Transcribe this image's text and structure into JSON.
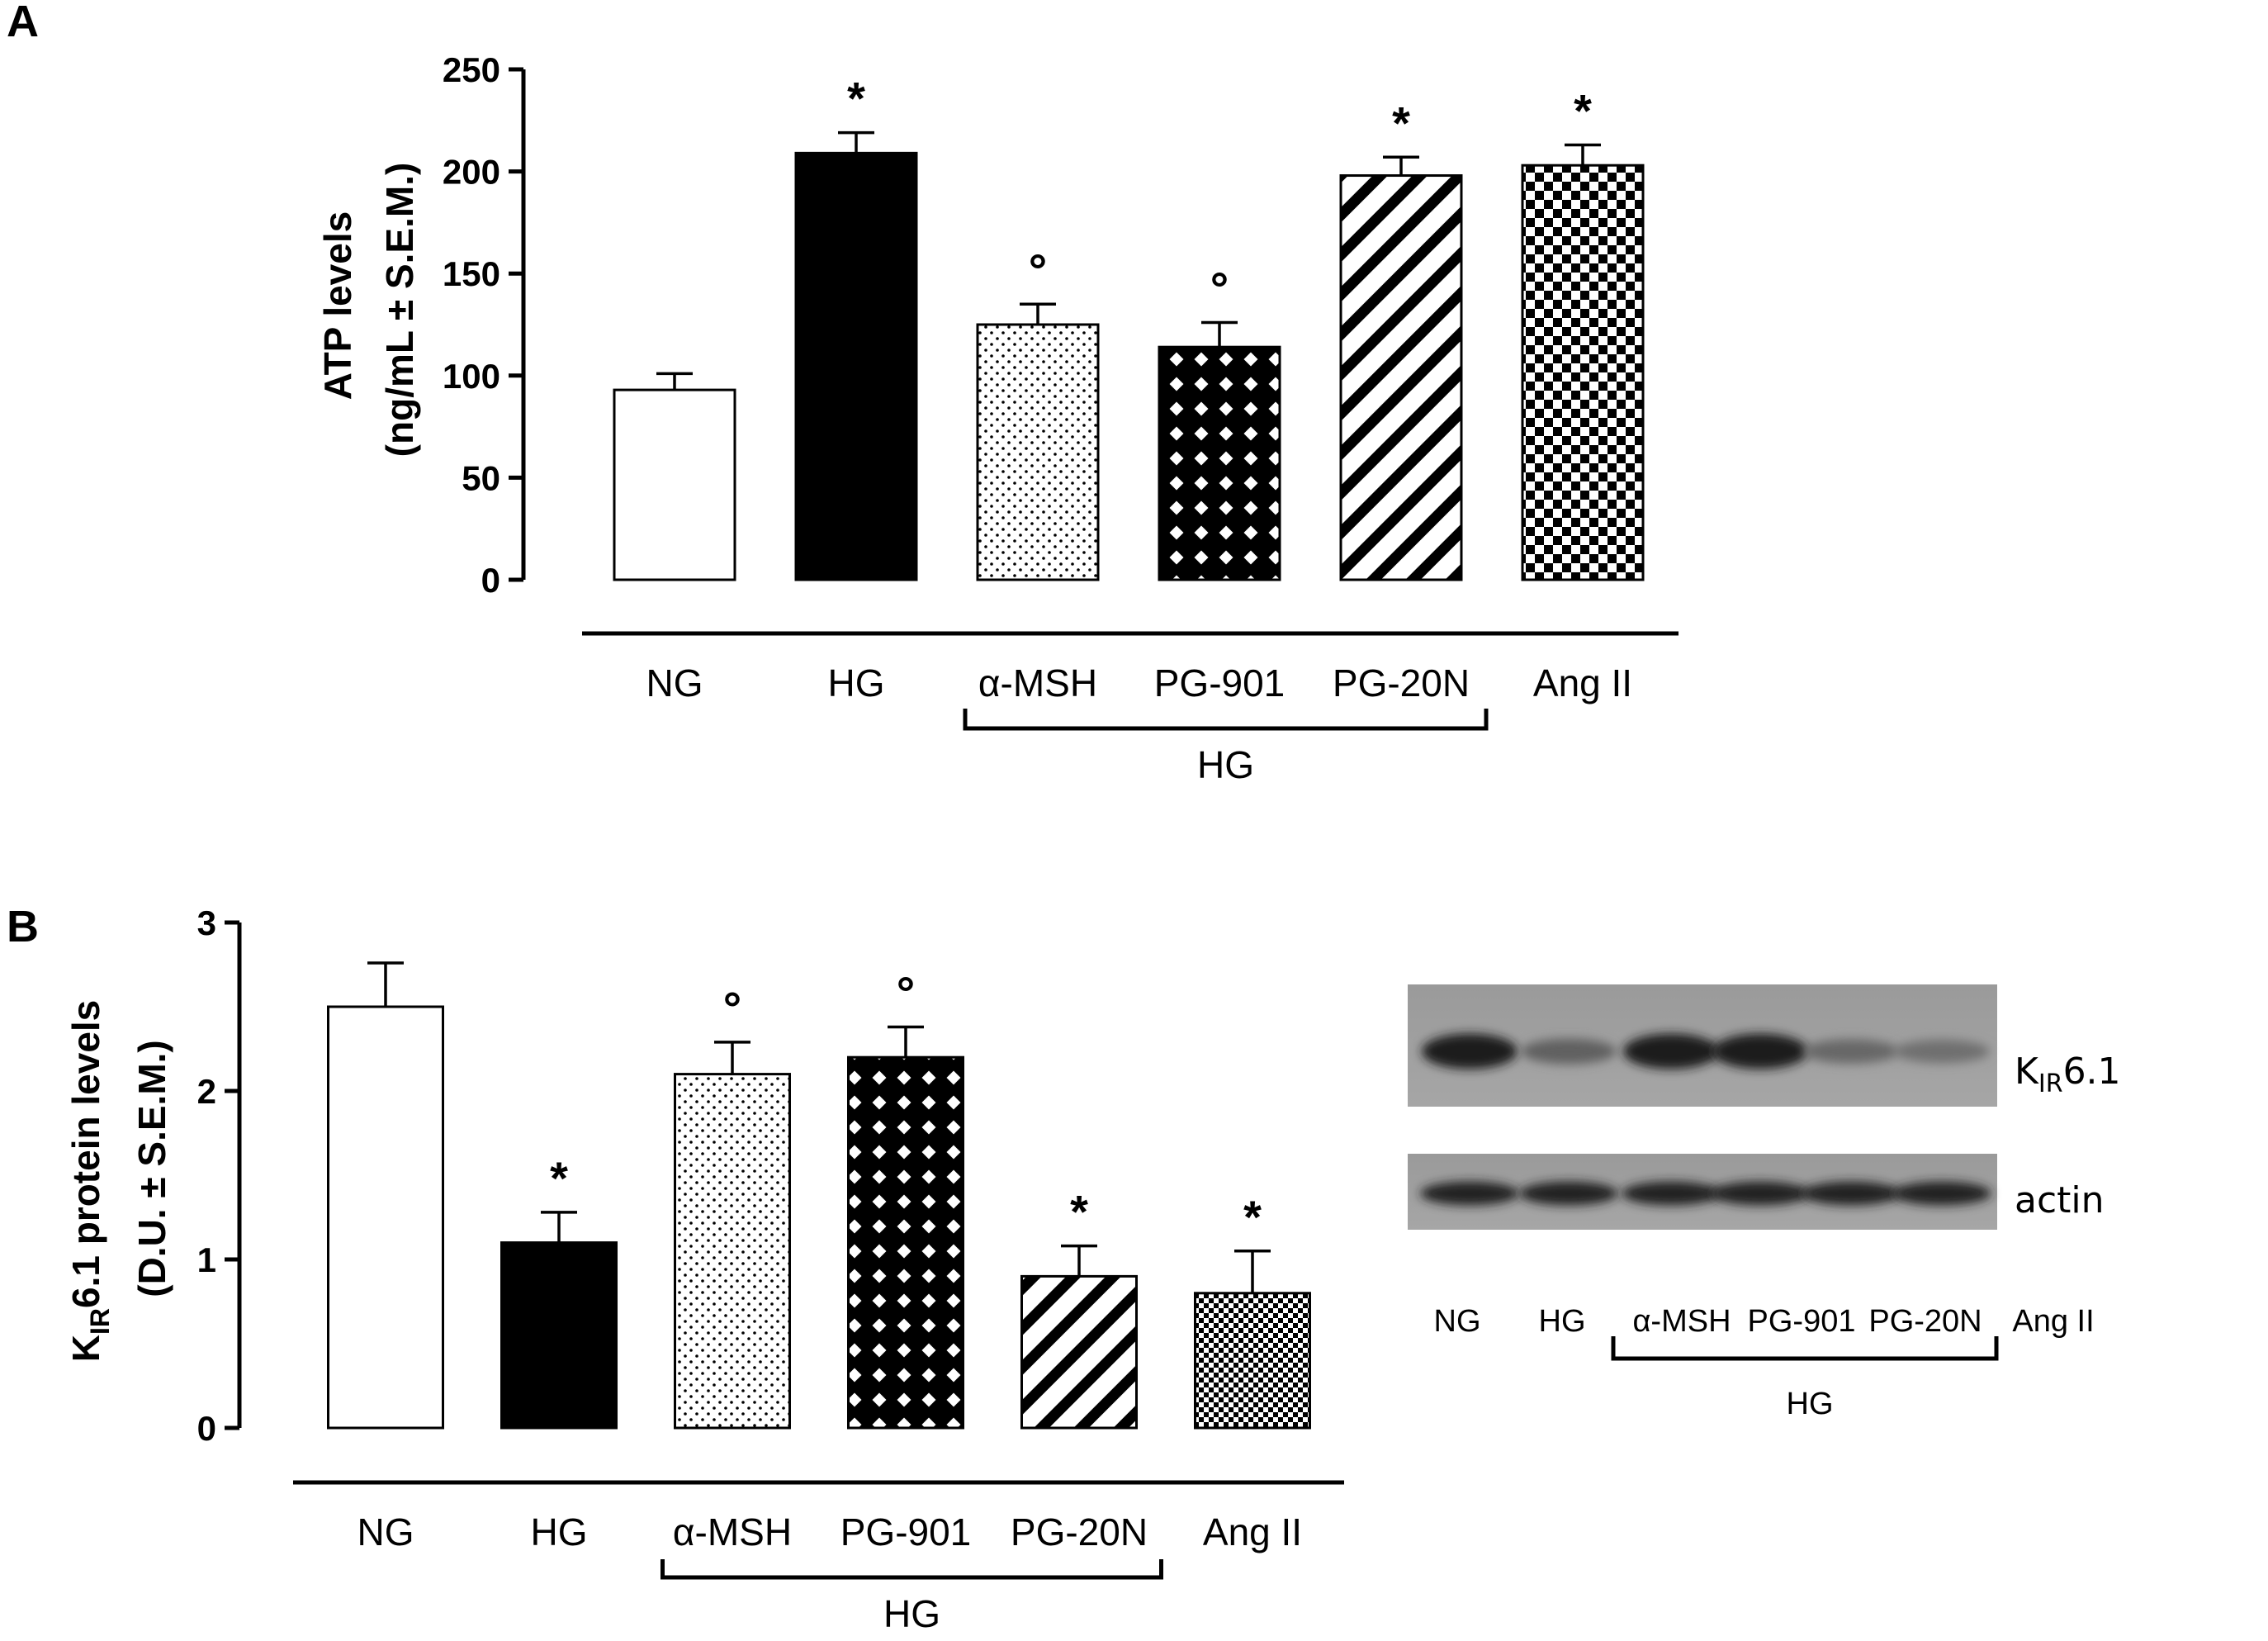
{
  "panels": {
    "a": {
      "letter": "A"
    },
    "b": {
      "letter": "B"
    }
  },
  "chart_data": [
    {
      "panel": "A",
      "type": "bar",
      "categories": [
        "NG",
        "HG",
        "α-MSH",
        "PG-901",
        "PG-20N",
        "Ang II"
      ],
      "values": [
        93,
        209,
        125,
        114,
        198,
        203
      ],
      "errors": [
        8,
        10,
        10,
        12,
        9,
        10
      ],
      "markers": [
        "",
        "*",
        "°",
        "°",
        "*",
        "*"
      ],
      "patterns": [
        "open",
        "solid",
        "dots",
        "crosshatch",
        "diagonal",
        "checker"
      ],
      "ylabel_line1": "ATP levels",
      "ylabel_line2": "(ng/mL ± S.E.M.)",
      "ylim": [
        0,
        250
      ],
      "yticks": [
        0,
        50,
        100,
        150,
        200,
        250
      ],
      "group_bracket_label": "HG",
      "grid": false
    },
    {
      "panel": "B",
      "type": "bar",
      "categories": [
        "NG",
        "HG",
        "α-MSH",
        "PG-901",
        "PG-20N",
        "Ang II"
      ],
      "values": [
        2.5,
        1.1,
        2.1,
        2.2,
        0.9,
        0.8
      ],
      "errors": [
        0.26,
        0.18,
        0.19,
        0.18,
        0.18,
        0.25
      ],
      "markers": [
        "",
        "*",
        "°",
        "°",
        "*",
        "*"
      ],
      "patterns": [
        "open",
        "solid",
        "dots",
        "crosshatch",
        "diagonal",
        "checker"
      ],
      "ylabel_k": "K",
      "ylabel_sub": "IR",
      "ylabel_rest": "6.1 protein levels",
      "ylabel_line2": "(D.U. ± S.E.M.)",
      "ylim": [
        0,
        3
      ],
      "yticks": [
        0,
        1,
        2,
        3
      ],
      "group_bracket_label": "HG",
      "grid": false
    }
  ],
  "blot": {
    "lanes": [
      "NG",
      "HG",
      "α-MSH",
      "PG-901",
      "PG-20N",
      "Ang II"
    ],
    "bracket_label": "HG",
    "kir_label_k": "K",
    "kir_label_sub": "IR",
    "kir_label_rest": "6.1",
    "actin_label": "actin",
    "kir_band_intensity": [
      0.95,
      0.45,
      0.95,
      0.95,
      0.4,
      0.35
    ],
    "actin_band_intensity": [
      0.9,
      0.9,
      0.9,
      0.9,
      0.9,
      0.9
    ]
  }
}
